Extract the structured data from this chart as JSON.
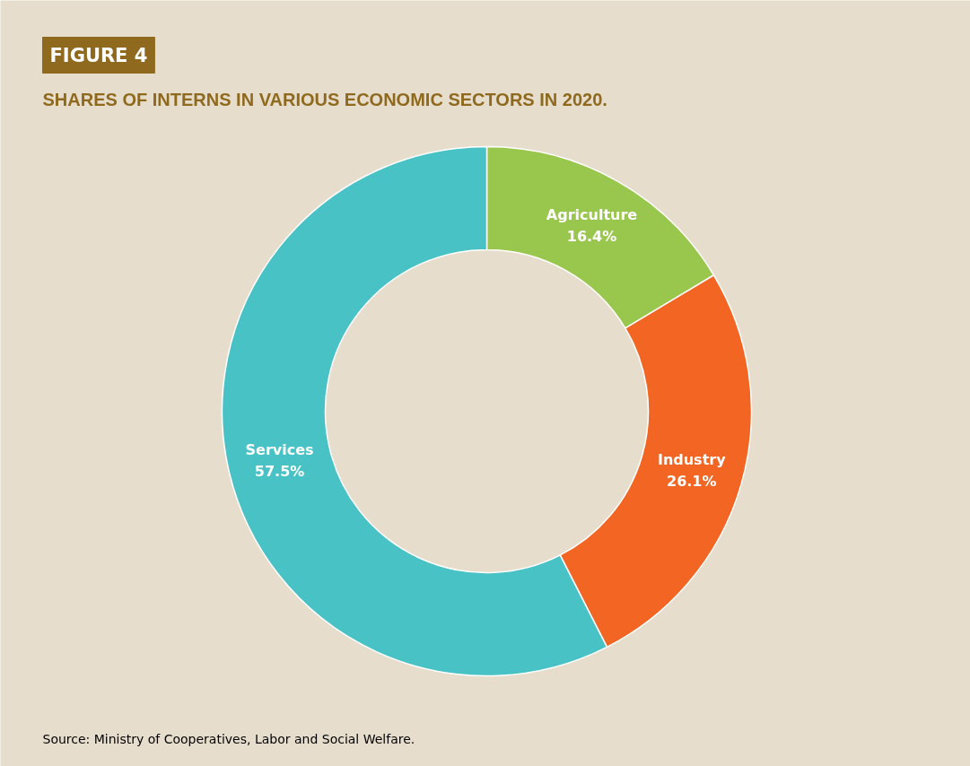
{
  "chart_data": {
    "type": "donut",
    "title": "FIGURE 4",
    "subtitle": "SHARES OF INTERNS IN VARIOUS ECONOMIC SECTORS IN 2020.",
    "categories": [
      "Agriculture",
      "Industry",
      "Services"
    ],
    "values": [
      16.4,
      26.1,
      57.5
    ],
    "value_labels": [
      "16.4%",
      "26.1%",
      "57.5%"
    ],
    "colors": [
      "#99c64c",
      "#f26522",
      "#48c2c5"
    ],
    "annotations": [
      "Source: Ministry of Cooperatives, Labor and Social Welfare."
    ]
  }
}
